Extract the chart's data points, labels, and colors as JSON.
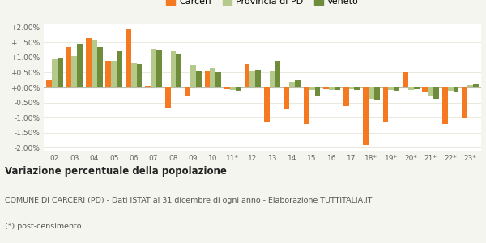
{
  "categories": [
    "02",
    "03",
    "04",
    "05",
    "06",
    "07",
    "08",
    "09",
    "10",
    "11*",
    "12",
    "13",
    "14",
    "15",
    "16",
    "17",
    "18*",
    "19*",
    "20*",
    "21*",
    "22*",
    "23*"
  ],
  "carceri": [
    0.25,
    1.35,
    1.65,
    0.88,
    1.93,
    0.05,
    -0.68,
    -0.3,
    0.55,
    -0.05,
    0.78,
    -1.12,
    -0.72,
    -1.22,
    -0.05,
    -0.63,
    -1.9,
    -1.15,
    0.52,
    -0.17,
    -1.22,
    -1.02
  ],
  "provincia_pd": [
    0.93,
    1.04,
    1.55,
    0.9,
    0.82,
    1.28,
    1.22,
    0.75,
    0.65,
    -0.08,
    0.55,
    0.55,
    0.2,
    -0.08,
    -0.07,
    -0.05,
    -0.38,
    -0.08,
    -0.07,
    -0.3,
    -0.12,
    0.07
  ],
  "veneto": [
    1.0,
    1.45,
    1.35,
    1.22,
    0.78,
    1.25,
    1.1,
    0.55,
    0.5,
    -0.1,
    0.6,
    0.9,
    0.25,
    -0.28,
    -0.08,
    -0.08,
    -0.42,
    -0.1,
    -0.05,
    -0.38,
    -0.15,
    0.12
  ],
  "color_carceri": "#f47920",
  "color_provincia": "#b5c98a",
  "color_veneto": "#6e8c3a",
  "ylim_min": -2.1,
  "ylim_max": 2.1,
  "yticks": [
    -2.0,
    -1.5,
    -1.0,
    -0.5,
    0.0,
    0.5,
    1.0,
    1.5,
    2.0
  ],
  "title_bold": "Variazione percentuale della popolazione",
  "subtitle1": "COMUNE DI CARCERI (PD) - Dati ISTAT al 31 dicembre di ogni anno - Elaborazione TUTTITALIA.IT",
  "subtitle2": "(*) post-censimento",
  "legend_labels": [
    "Carceri",
    "Provincia di PD",
    "Veneto"
  ],
  "bg_color": "#f5f5ef",
  "plot_bg": "#ffffff",
  "grid_color": "#e0e0d0"
}
